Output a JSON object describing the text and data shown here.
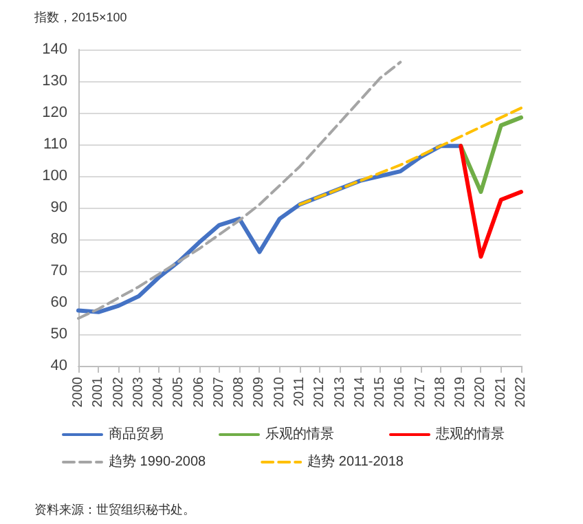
{
  "chart_data": {
    "type": "line",
    "ylabel": "指数，2015×100",
    "categories": [
      "2000",
      "2001",
      "2002",
      "2003",
      "2004",
      "2005",
      "2006",
      "2007",
      "2008",
      "2009",
      "2010",
      "2011",
      "2012",
      "2013",
      "2014",
      "2015",
      "2016",
      "2017",
      "2018",
      "2019",
      "2020",
      "2021",
      "2022"
    ],
    "series": [
      {
        "name": "商品贸易",
        "color": "#4472c4",
        "values": [
          57.5,
          57,
          59,
          62,
          68,
          73,
          79,
          84.5,
          86.5,
          76,
          86.5,
          91,
          93.5,
          96,
          98.5,
          100,
          101.5,
          106,
          109.5,
          109.5,
          null,
          null,
          null
        ]
      },
      {
        "name": "乐观的情景",
        "color": "#70ad47",
        "values": [
          null,
          null,
          null,
          null,
          null,
          null,
          null,
          null,
          null,
          null,
          null,
          null,
          null,
          null,
          null,
          null,
          null,
          null,
          null,
          109.5,
          95,
          116,
          118.5
        ]
      },
      {
        "name": "悲观的情景",
        "color": "#ff0000",
        "values": [
          null,
          null,
          null,
          null,
          null,
          null,
          null,
          null,
          null,
          null,
          null,
          null,
          null,
          null,
          null,
          null,
          null,
          null,
          null,
          109.5,
          74.5,
          92.5,
          95
        ]
      },
      {
        "name": "趋势 1990-2008",
        "color": "#a5a5a5",
        "line_style": "dashed",
        "values": [
          55,
          58,
          61.5,
          65,
          69,
          73,
          77,
          81.5,
          86,
          91,
          97,
          103,
          110,
          117,
          124,
          131,
          136,
          null,
          null,
          null,
          null,
          null,
          null
        ]
      },
      {
        "name": "趋势 2011-2018",
        "color": "#ffc000",
        "line_style": "dashed",
        "values": [
          null,
          null,
          null,
          null,
          null,
          null,
          null,
          null,
          null,
          null,
          null,
          91,
          93.5,
          96,
          98.5,
          101,
          103.5,
          106.5,
          109.5,
          112.5,
          115.5,
          118.5,
          121.5
        ]
      }
    ],
    "ylim": [
      40,
      140
    ],
    "yticks": [
      40,
      50,
      60,
      70,
      80,
      90,
      100,
      110,
      120,
      130,
      140
    ],
    "grid": "y",
    "legend": "bottom",
    "marker": "none",
    "line_style": "solid",
    "annotations": [
      "资料来源：世贸组织秘书处。"
    ]
  }
}
